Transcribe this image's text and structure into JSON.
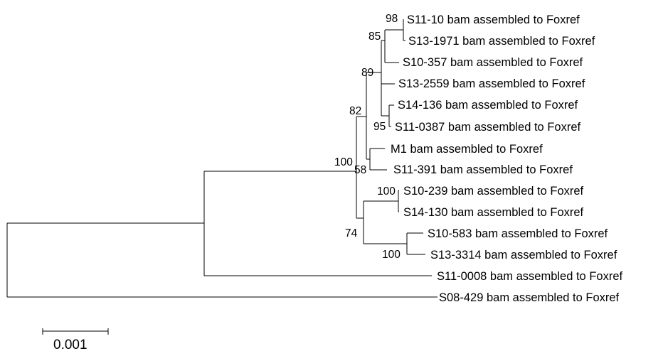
{
  "tree": {
    "leaves": [
      "S11-10 bam assembled to Foxref",
      "S13-1971 bam assembled to Foxref",
      "S10-357 bam assembled to Foxref",
      "S13-2559 bam assembled to Foxref",
      "S14-136 bam assembled to Foxref",
      "S11-0387 bam assembled to Foxref",
      "M1 bam assembled to Foxref",
      "S11-391 bam assembled to Foxref",
      "S10-239 bam assembled to Foxref",
      "S14-130 bam assembled to Foxref",
      "S10-583 bam assembled to Foxref",
      "S13-3314 bam assembled to Foxref",
      "S11-0008 bam assembled to Foxref",
      "S08-429 bam assembled to Foxref"
    ],
    "bootstrap": [
      "98",
      "85",
      "89",
      "82",
      "95",
      "100",
      "58",
      "100",
      "74",
      "100"
    ]
  },
  "scale_bar": {
    "label": "0.001"
  }
}
